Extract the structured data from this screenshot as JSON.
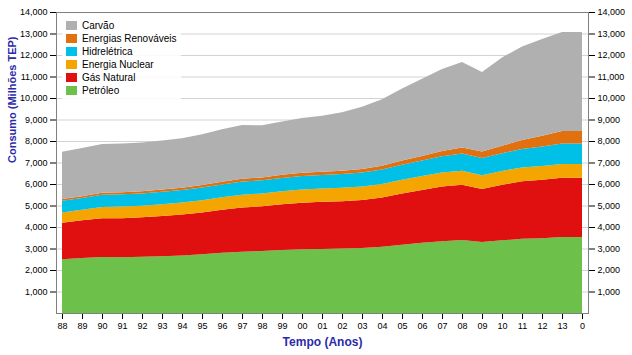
{
  "chart_data": {
    "type": "area",
    "stacked": true,
    "xlabel": "Tempo (Anos)",
    "ylabel": "Consumo (Milhões TEP)",
    "categories": [
      "88",
      "89",
      "90",
      "91",
      "92",
      "93",
      "94",
      "95",
      "96",
      "97",
      "98",
      "99",
      "00",
      "01",
      "02",
      "03",
      "04",
      "05",
      "06",
      "07",
      "08",
      "09",
      "10",
      "11",
      "12",
      "13",
      "0"
    ],
    "series": [
      {
        "name": "Petróleo",
        "color": "#6dc04a",
        "values": [
          2500,
          2560,
          2610,
          2590,
          2620,
          2640,
          2680,
          2730,
          2800,
          2850,
          2880,
          2930,
          2960,
          2980,
          3000,
          3020,
          3080,
          3180,
          3270,
          3340,
          3390,
          3300,
          3380,
          3450,
          3480,
          3540,
          3540
        ]
      },
      {
        "name": "Gás Natural",
        "color": "#e01010",
        "values": [
          1700,
          1750,
          1800,
          1820,
          1830,
          1870,
          1900,
          1950,
          2000,
          2060,
          2080,
          2130,
          2170,
          2200,
          2200,
          2240,
          2290,
          2380,
          2450,
          2540,
          2570,
          2470,
          2580,
          2680,
          2720,
          2750,
          2750
        ]
      },
      {
        "name": "Energia Nuclear",
        "color": "#f5a500",
        "values": [
          480,
          490,
          520,
          540,
          540,
          550,
          560,
          570,
          580,
          590,
          600,
          600,
          610,
          610,
          620,
          620,
          630,
          640,
          650,
          660,
          660,
          640,
          650,
          640,
          640,
          640,
          640
        ]
      },
      {
        "name": "Hidrelétrica",
        "color": "#00c0e8",
        "values": [
          540,
          550,
          570,
          570,
          570,
          580,
          580,
          590,
          600,
          620,
          610,
          620,
          630,
          630,
          640,
          650,
          670,
          700,
          720,
          750,
          800,
          800,
          820,
          860,
          900,
          950,
          950
        ]
      },
      {
        "name": "Energias Renováveis",
        "color": "#e07010",
        "values": [
          80,
          85,
          90,
          95,
          100,
          105,
          110,
          115,
          120,
          130,
          135,
          145,
          150,
          155,
          160,
          165,
          175,
          190,
          210,
          240,
          280,
          300,
          350,
          420,
          500,
          590,
          590
        ]
      },
      {
        "name": "Carvão",
        "color": "#b0b0b0",
        "values": [
          2200,
          2240,
          2270,
          2270,
          2270,
          2280,
          2300,
          2360,
          2450,
          2490,
          2430,
          2480,
          2550,
          2600,
          2720,
          2900,
          3100,
          3350,
          3600,
          3820,
          3970,
          3700,
          4100,
          4350,
          4500,
          4600,
          4600
        ]
      }
    ],
    "ylim": [
      0,
      14000
    ],
    "yticks": [
      1000,
      2000,
      3000,
      4000,
      5000,
      6000,
      7000,
      8000,
      9000,
      10000,
      11000,
      12000,
      13000,
      14000
    ],
    "grid": true,
    "legend": "upper left"
  }
}
